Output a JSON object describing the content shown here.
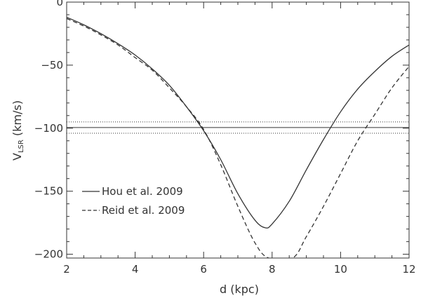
{
  "chart_data": {
    "type": "line",
    "xlabel": "d (kpc)",
    "ylabel_main": "V",
    "ylabel_sub": "LSR",
    "ylabel_unit": " (km/s)",
    "xlim": [
      2,
      12
    ],
    "ylim": [
      -203,
      0
    ],
    "xticks": [
      2,
      4,
      6,
      8,
      10,
      12
    ],
    "xtick_labels": [
      "2",
      "4",
      "6",
      "8",
      "10",
      "12"
    ],
    "yticks": [
      0,
      -50,
      -100,
      -150,
      -200
    ],
    "ytick_labels": [
      "0",
      "−50",
      "−100",
      "−150",
      "−200"
    ],
    "grid": false,
    "legend_position": "bottom-left",
    "series": [
      {
        "name": "Hou et al. 2009",
        "style": "solid",
        "x": [
          2.0,
          2.5,
          3.0,
          3.5,
          4.0,
          4.5,
          5.0,
          5.5,
          6.0,
          6.5,
          7.0,
          7.5,
          7.8,
          8.0,
          8.5,
          9.0,
          9.5,
          10.0,
          10.5,
          11.0,
          11.5,
          12.0
        ],
        "y": [
          -12,
          -18,
          -25,
          -33,
          -42,
          -53,
          -66,
          -83,
          -102,
          -125,
          -152,
          -173,
          -179,
          -176,
          -158,
          -133,
          -109,
          -87,
          -69,
          -55,
          -43,
          -34
        ]
      },
      {
        "name": "Reid et al. 2009",
        "style": "dashed",
        "x": [
          2.0,
          2.5,
          3.0,
          3.5,
          4.0,
          4.5,
          5.0,
          5.5,
          6.0,
          6.5,
          7.0,
          7.5,
          7.9,
          8.6,
          9.0,
          9.5,
          10.0,
          10.5,
          11.0,
          11.5,
          12.0
        ],
        "y": [
          -13,
          -19,
          -26,
          -34,
          -44,
          -54,
          -68,
          -83,
          -101,
          -129,
          -162,
          -191,
          -203,
          -203,
          -186,
          -162,
          -136,
          -110,
          -89,
          -68,
          -51
        ]
      }
    ],
    "hlines": [
      {
        "y": -95,
        "style": "dotted"
      },
      {
        "y": -99.5,
        "style": "solid"
      },
      {
        "y": -104,
        "style": "dotted"
      }
    ]
  }
}
